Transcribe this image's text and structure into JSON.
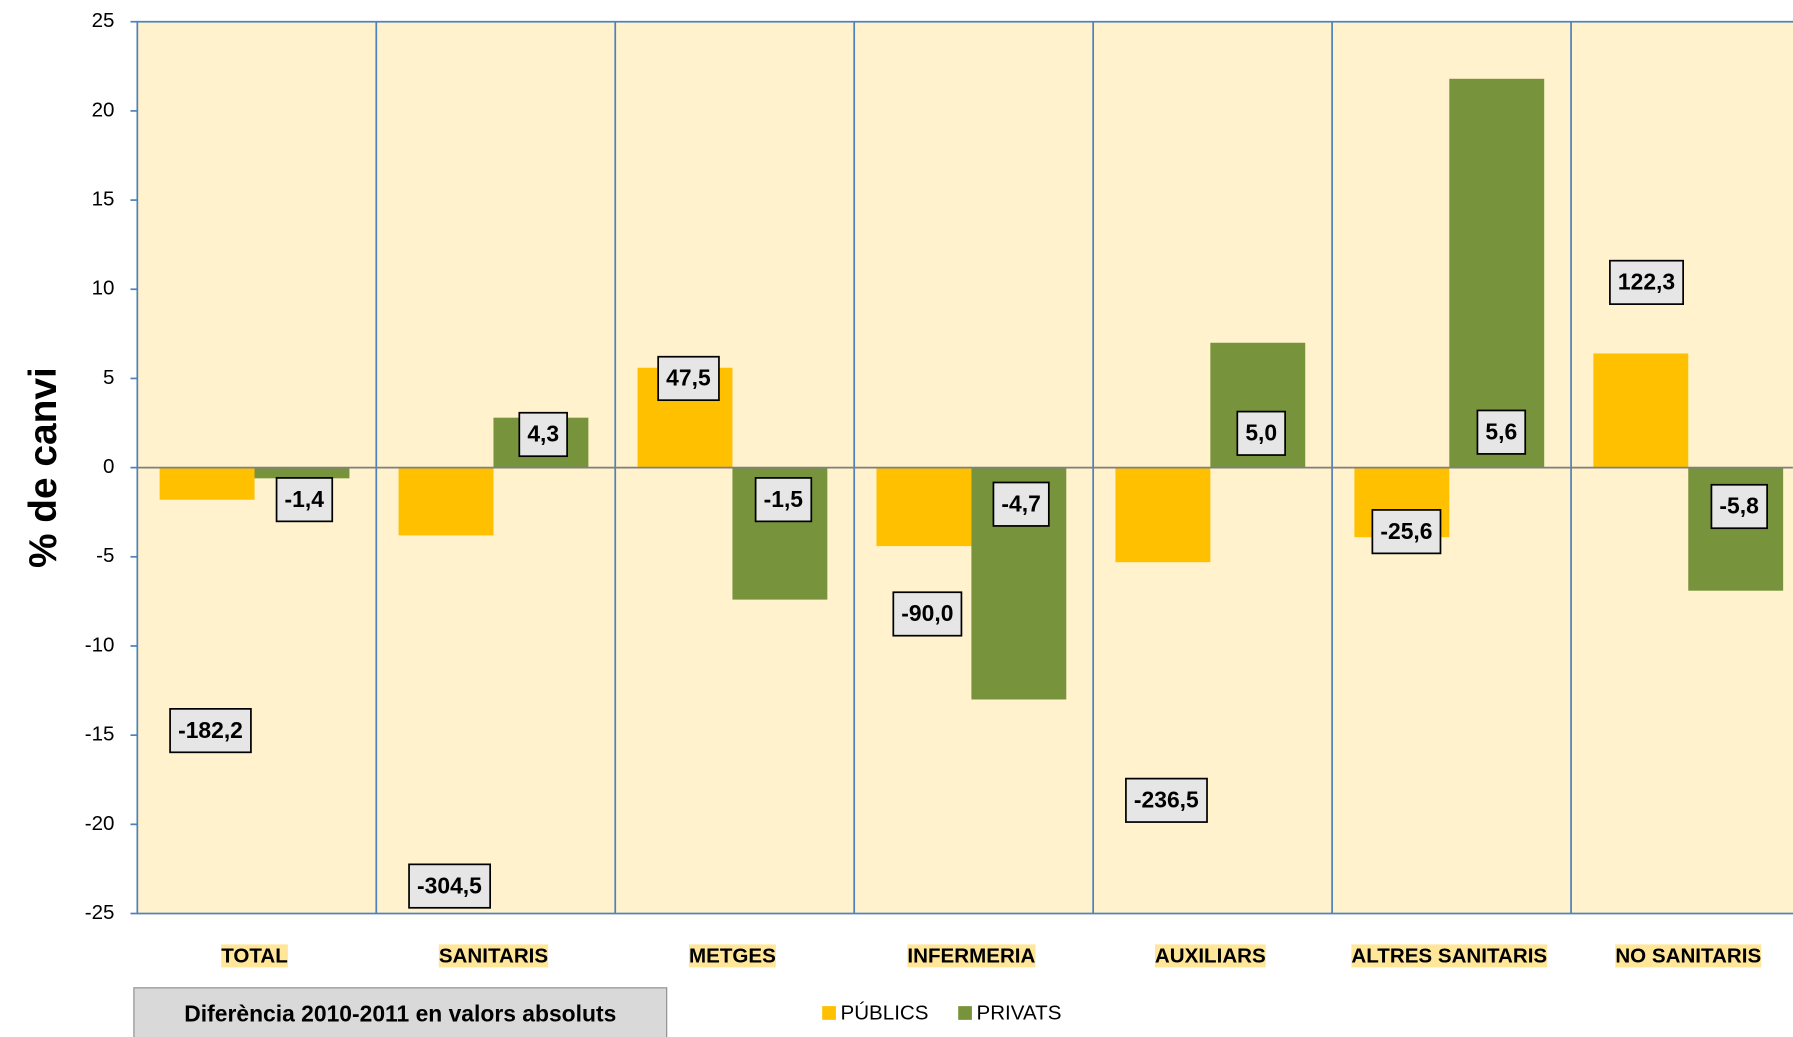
{
  "chart_data": {
    "type": "bar",
    "y_label": "% de  canvi",
    "categories": [
      "TOTAL",
      "SANITARIS",
      "METGES",
      "INFERMERIA",
      "AUXILIARS",
      "ALTRES SANITARIS",
      "NO SANITARIS"
    ],
    "series": [
      {
        "name": "PÚBLICS",
        "color": "#ffc000",
        "values": [
          -1.8,
          -3.8,
          5.6,
          -4.4,
          -5.3,
          -3.9,
          6.4
        ],
        "annotations": [
          "-182,2",
          "-304,5",
          "47,5",
          "-90,0",
          "-236,5",
          "-25,6",
          "122,3"
        ]
      },
      {
        "name": "PRIVATS",
        "color": "#77933c",
        "values": [
          -0.6,
          2.8,
          -7.4,
          -13.0,
          7.0,
          21.8,
          -6.9
        ],
        "annotations": [
          "-1,4",
          "4,3",
          "-1,5",
          "-4,7",
          "5,0",
          "5,6",
          "-5,8"
        ]
      }
    ],
    "ylim": [
      -25,
      25
    ],
    "yticks": [
      -25,
      -20,
      -15,
      -10,
      -5,
      0,
      5,
      10,
      15,
      20,
      25
    ],
    "note": "Diferència  2010-2011 en valors absoluts",
    "legend": "bottom"
  }
}
